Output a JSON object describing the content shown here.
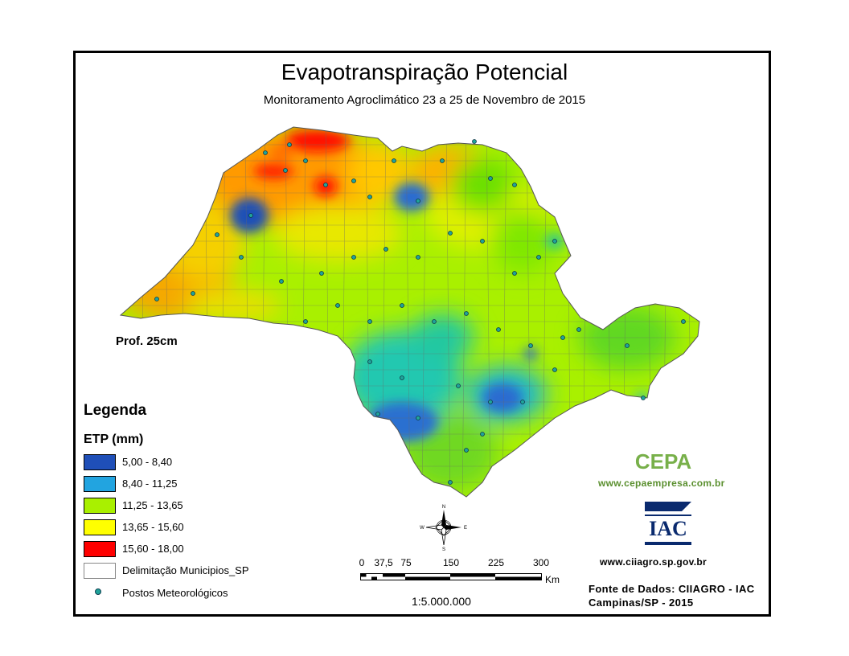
{
  "title": "Evapotranspiração Potencial",
  "subtitle": "Monitoramento Agroclimático 23 a 25 de Novembro de 2015",
  "depth_label": "Prof. 25cm",
  "legend": {
    "title": "Legenda",
    "variable": "ETP (mm)",
    "classes": [
      {
        "label": "5,00 - 8,40",
        "color": "#1f4fb8"
      },
      {
        "label": "8,40 - 11,25",
        "color": "#22a4e0"
      },
      {
        "label": "11,25 - 13,65",
        "color": "#a9f000"
      },
      {
        "label": "13,65 - 15,60",
        "color": "#ffff00"
      },
      {
        "label": "15,60 - 18,00",
        "color": "#ff0000"
      }
    ],
    "municipalities": "Delimitação Municipios_SP",
    "stations": "Postos Meteorológicos"
  },
  "scale": {
    "ticks": [
      "0",
      "37,5",
      "75",
      "150",
      "225",
      "300"
    ],
    "unit": "Km",
    "ratio": "1:5.000.000"
  },
  "compass": {
    "n": "N",
    "s": "S",
    "e": "E",
    "w": "W"
  },
  "logos": {
    "cepa": "CEPA",
    "cepa_url": "www.cepaempresa.com.br",
    "iac": "IAC",
    "iac_url": "www.ciiagro.sp.gov.br"
  },
  "source": {
    "line1": "Fonte de Dados: CIIAGRO - IAC",
    "line2": "Campinas/SP - 2015"
  }
}
